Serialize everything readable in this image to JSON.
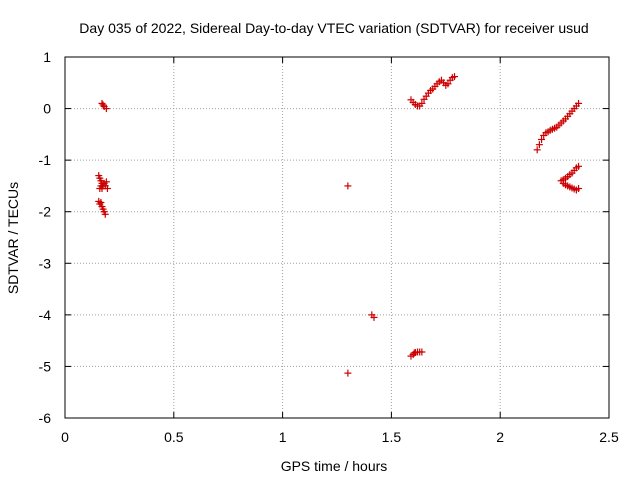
{
  "chart_data": {
    "type": "scatter",
    "title": "Day 035 of 2022, Sidereal Day-to-day VTEC variation (SDTVAR) for receiver usud",
    "xlabel": "GPS time / hours",
    "ylabel": "SDTVAR / TECUs",
    "xlim": [
      0,
      2.5
    ],
    "ylim": [
      -6,
      1
    ],
    "xticks": [
      0,
      0.5,
      1,
      1.5,
      2,
      2.5
    ],
    "xtick_labels": [
      "0",
      "0.5",
      "1",
      "1.5",
      "2",
      "2.5"
    ],
    "yticks": [
      1,
      0,
      -1,
      -2,
      -3,
      -4,
      -5,
      -6
    ],
    "ytick_labels": [
      "1",
      "0",
      "-1",
      "-2",
      "-3",
      "-4",
      "-5",
      "-6"
    ],
    "grid": true,
    "legend": false,
    "marker": "plus",
    "color": "#cc0000",
    "series": [
      {
        "points": [
          [
            0.17,
            0.1
          ],
          [
            0.175,
            0.07
          ],
          [
            0.18,
            0.04
          ],
          [
            0.19,
            0.0
          ],
          [
            0.155,
            -1.3
          ],
          [
            0.16,
            -1.35
          ],
          [
            0.165,
            -1.4
          ],
          [
            0.17,
            -1.45
          ],
          [
            0.175,
            -1.5
          ],
          [
            0.18,
            -1.45
          ],
          [
            0.185,
            -1.5
          ],
          [
            0.19,
            -1.42
          ],
          [
            0.195,
            -1.55
          ],
          [
            0.16,
            -1.55
          ],
          [
            0.165,
            -1.5
          ],
          [
            0.17,
            -1.55
          ],
          [
            0.155,
            -1.8
          ],
          [
            0.16,
            -1.85
          ],
          [
            0.165,
            -1.82
          ],
          [
            0.17,
            -1.9
          ],
          [
            0.175,
            -1.95
          ],
          [
            0.18,
            -2.0
          ],
          [
            0.185,
            -2.05
          ],
          [
            1.3,
            -1.5
          ],
          [
            1.3,
            -5.13
          ],
          [
            1.41,
            -4.0
          ],
          [
            1.42,
            -4.05
          ],
          [
            1.59,
            -4.8
          ],
          [
            1.6,
            -4.77
          ],
          [
            1.605,
            -4.74
          ],
          [
            1.61,
            -4.73
          ],
          [
            1.62,
            -4.72
          ],
          [
            1.63,
            -4.72
          ],
          [
            1.64,
            -4.72
          ],
          [
            1.59,
            0.17
          ],
          [
            1.6,
            0.12
          ],
          [
            1.61,
            0.08
          ],
          [
            1.62,
            0.05
          ],
          [
            1.63,
            0.05
          ],
          [
            1.64,
            0.1
          ],
          [
            1.65,
            0.18
          ],
          [
            1.66,
            0.24
          ],
          [
            1.67,
            0.3
          ],
          [
            1.68,
            0.35
          ],
          [
            1.69,
            0.38
          ],
          [
            1.7,
            0.43
          ],
          [
            1.71,
            0.48
          ],
          [
            1.72,
            0.52
          ],
          [
            1.73,
            0.55
          ],
          [
            1.74,
            0.5
          ],
          [
            1.75,
            0.45
          ],
          [
            1.76,
            0.48
          ],
          [
            1.77,
            0.55
          ],
          [
            1.78,
            0.6
          ],
          [
            1.79,
            0.62
          ],
          [
            2.17,
            -0.8
          ],
          [
            2.18,
            -0.7
          ],
          [
            2.19,
            -0.6
          ],
          [
            2.2,
            -0.52
          ],
          [
            2.21,
            -0.47
          ],
          [
            2.22,
            -0.45
          ],
          [
            2.23,
            -0.42
          ],
          [
            2.24,
            -0.4
          ],
          [
            2.25,
            -0.38
          ],
          [
            2.26,
            -0.36
          ],
          [
            2.27,
            -0.32
          ],
          [
            2.28,
            -0.28
          ],
          [
            2.29,
            -0.24
          ],
          [
            2.3,
            -0.2
          ],
          [
            2.31,
            -0.15
          ],
          [
            2.32,
            -0.1
          ],
          [
            2.33,
            -0.05
          ],
          [
            2.34,
            0.0
          ],
          [
            2.35,
            0.05
          ],
          [
            2.36,
            0.1
          ],
          [
            2.28,
            -1.4
          ],
          [
            2.29,
            -1.38
          ],
          [
            2.3,
            -1.35
          ],
          [
            2.31,
            -1.32
          ],
          [
            2.32,
            -1.28
          ],
          [
            2.33,
            -1.25
          ],
          [
            2.34,
            -1.2
          ],
          [
            2.35,
            -1.15
          ],
          [
            2.36,
            -1.12
          ],
          [
            2.29,
            -1.45
          ],
          [
            2.3,
            -1.48
          ],
          [
            2.31,
            -1.5
          ],
          [
            2.32,
            -1.52
          ],
          [
            2.33,
            -1.54
          ],
          [
            2.34,
            -1.56
          ],
          [
            2.35,
            -1.58
          ],
          [
            2.36,
            -1.55
          ]
        ]
      }
    ]
  }
}
